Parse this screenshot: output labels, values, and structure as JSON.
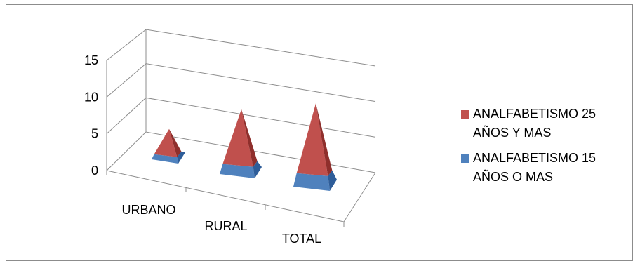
{
  "chart_data": {
    "type": "bar",
    "subtype": "3d-pyramid-stacked",
    "categories": [
      "URBANO",
      "RURAL",
      "TOTAL"
    ],
    "y_ticks": [
      "0",
      "5",
      "10",
      "15"
    ],
    "ylim": [
      0,
      15
    ],
    "grid": true,
    "legend_position": "right",
    "series": [
      {
        "name": "ANALFABETISMO 15 AÑOS O MAS",
        "legend_lines": [
          "ANALFABETISMO 15",
          "AÑOS O MAS"
        ],
        "values": [
          0.6,
          1.2,
          1.6
        ],
        "color": "#4f81bd",
        "side_color": "#2e5d99"
      },
      {
        "name": "ANALFABETISMO 25 AÑOS Y MAS",
        "legend_lines": [
          "ANALFABETISMO  25",
          "AÑOS Y MAS"
        ],
        "values": [
          3.0,
          6.5,
          8.3
        ],
        "color": "#c0504d",
        "side_color": "#8f2f2c"
      }
    ]
  }
}
